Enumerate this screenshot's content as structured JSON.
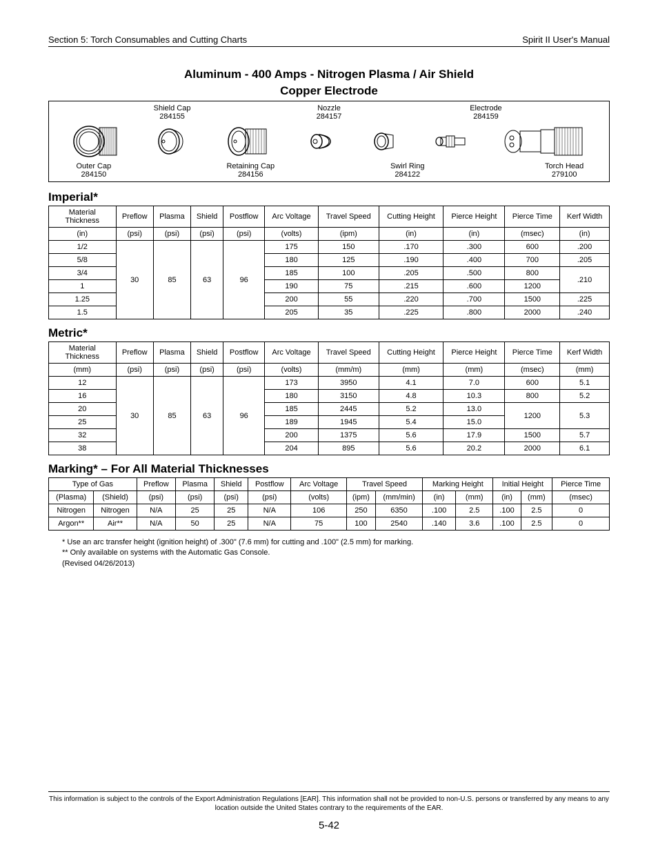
{
  "header": {
    "left": "Section 5: Torch Consumables and Cutting Charts",
    "right": "Spirit II User's Manual"
  },
  "title_line1": "Aluminum - 400 Amps - Nitrogen Plasma / Air Shield",
  "title_line2": "Copper Electrode",
  "parts": {
    "top": [
      {
        "name": "Shield Cap",
        "num": "284155"
      },
      {
        "name": "Nozzle",
        "num": "284157"
      },
      {
        "name": "Electrode",
        "num": "284159"
      }
    ],
    "bottom": [
      {
        "name": "Outer Cap",
        "num": "284150"
      },
      {
        "name": "Retaining Cap",
        "num": "284156"
      },
      {
        "name": "Swirl Ring",
        "num": "284122"
      },
      {
        "name": "Torch Head",
        "num": "279100"
      }
    ]
  },
  "imperial": {
    "heading": "Imperial*",
    "headers1": [
      "Material Thickness",
      "Preflow",
      "Plasma",
      "Shield",
      "Postflow",
      "Arc Voltage",
      "Travel Speed",
      "Cutting Height",
      "Pierce Height",
      "Pierce Time",
      "Kerf Width"
    ],
    "headers2": [
      "(in)",
      "(psi)",
      "(psi)",
      "(psi)",
      "(psi)",
      "(volts)",
      "(ipm)",
      "(in)",
      "(in)",
      "(msec)",
      "(in)"
    ],
    "shared": {
      "preflow": "30",
      "plasma": "85",
      "shield": "63",
      "postflow": "96"
    },
    "rows": [
      {
        "t": "1/2",
        "av": "175",
        "ts": "150",
        "ch": ".170",
        "ph": ".300",
        "pt": "600",
        "kw": ".200"
      },
      {
        "t": "5/8",
        "av": "180",
        "ts": "125",
        "ch": ".190",
        "ph": ".400",
        "pt": "700",
        "kw": ".205"
      },
      {
        "t": "3/4",
        "av": "185",
        "ts": "100",
        "ch": ".205",
        "ph": ".500",
        "pt": "800",
        "kw": ".210",
        "kw_span": 2
      },
      {
        "t": "1",
        "av": "190",
        "ts": "75",
        "ch": ".215",
        "ph": ".600",
        "pt": "1200"
      },
      {
        "t": "1.25",
        "av": "200",
        "ts": "55",
        "ch": ".220",
        "ph": ".700",
        "pt": "1500",
        "kw": ".225"
      },
      {
        "t": "1.5",
        "av": "205",
        "ts": "35",
        "ch": ".225",
        "ph": ".800",
        "pt": "2000",
        "kw": ".240"
      }
    ]
  },
  "metric": {
    "heading": "Metric*",
    "headers1": [
      "Material Thickness",
      "Preflow",
      "Plasma",
      "Shield",
      "Postflow",
      "Arc Voltage",
      "Travel Speed",
      "Cutting Height",
      "Pierce Height",
      "Pierce Time",
      "Kerf Width"
    ],
    "headers2": [
      "(mm)",
      "(psi)",
      "(psi)",
      "(psi)",
      "(psi)",
      "(volts)",
      "(mm/m)",
      "(mm)",
      "(mm)",
      "(msec)",
      "(mm)"
    ],
    "shared": {
      "preflow": "30",
      "plasma": "85",
      "shield": "63",
      "postflow": "96"
    },
    "rows": [
      {
        "t": "12",
        "av": "173",
        "ts": "3950",
        "ch": "4.1",
        "ph": "7.0",
        "pt": "600",
        "kw": "5.1"
      },
      {
        "t": "16",
        "av": "180",
        "ts": "3150",
        "ch": "4.8",
        "ph": "10.3",
        "pt": "800",
        "kw": "5.2"
      },
      {
        "t": "20",
        "av": "185",
        "ts": "2445",
        "ch": "5.2",
        "ph": "13.0",
        "pt": "1200",
        "pt_span": 2,
        "kw": "5.3",
        "kw_span": 2
      },
      {
        "t": "25",
        "av": "189",
        "ts": "1945",
        "ch": "5.4",
        "ph": "15.0"
      },
      {
        "t": "32",
        "av": "200",
        "ts": "1375",
        "ch": "5.6",
        "ph": "17.9",
        "pt": "1500",
        "kw": "5.7"
      },
      {
        "t": "38",
        "av": "204",
        "ts": "895",
        "ch": "5.6",
        "ph": "20.2",
        "pt": "2000",
        "kw": "6.1"
      }
    ]
  },
  "marking": {
    "heading": "Marking* – For All Material Thicknesses",
    "h1": {
      "gas": "Type of Gas",
      "preflow": "Preflow",
      "plasma": "Plasma",
      "shield": "Shield",
      "postflow": "Postflow",
      "av": "Arc Voltage",
      "ts": "Travel Speed",
      "mh": "Marking Height",
      "ih": "Initial Height",
      "pt": "Pierce Time"
    },
    "h2": {
      "plasma": "(Plasma)",
      "shield_g": "(Shield)",
      "preflow": "(psi)",
      "plasma_u": "(psi)",
      "shield": "(psi)",
      "postflow": "(psi)",
      "av": "(volts)",
      "ts_ipm": "(ipm)",
      "ts_mm": "(mm/min)",
      "mh_in": "(in)",
      "mh_mm": "(mm)",
      "ih_in": "(in)",
      "ih_mm": "(mm)",
      "pt": "(msec)"
    },
    "rows": [
      {
        "p": "Nitrogen",
        "s": "Nitrogen",
        "pf": "N/A",
        "pl": "25",
        "sh": "25",
        "po": "N/A",
        "av": "106",
        "ti": "250",
        "tm": "6350",
        "mhi": ".100",
        "mhm": "2.5",
        "ihi": ".100",
        "ihm": "2.5",
        "pt": "0"
      },
      {
        "p": "Argon**",
        "s": "Air**",
        "pf": "N/A",
        "pl": "50",
        "sh": "25",
        "po": "N/A",
        "av": "75",
        "ti": "100",
        "tm": "2540",
        "mhi": ".140",
        "mhm": "3.6",
        "ihi": ".100",
        "ihm": "2.5",
        "pt": "0"
      }
    ]
  },
  "notes": {
    "n1": "* Use an arc transfer height (ignition height) of .300\" (7.6 mm) for cutting and .100\" (2.5 mm) for marking.",
    "n2": "** Only available on systems with the Automatic Gas Console.",
    "n3": "(Revised 04/26/2013)"
  },
  "footer": {
    "disclaimer": "This information is subject to the controls of the Export Administration Regulations [EAR].  This information shall not be provided to non-U.S. persons or transferred by any means to any location outside the United States contrary to the requirements of the EAR.",
    "page": "5-42"
  }
}
